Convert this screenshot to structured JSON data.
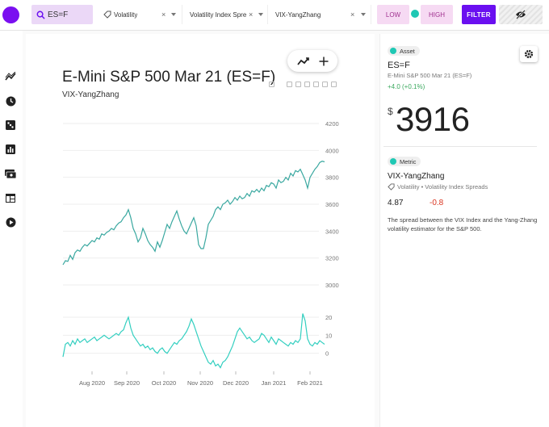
{
  "topbar": {
    "search_value": "ES=F",
    "dropdowns": [
      {
        "label": "Volatility",
        "clear": "×"
      },
      {
        "label": "Volatility Index Spre",
        "clear": "×"
      },
      {
        "label": "VIX-YangZhang",
        "clear": "×"
      }
    ],
    "low_label": "LOW",
    "high_label": "HIGH",
    "filter_label": "FILTER",
    "colors": {
      "accent": "#6a0ff0",
      "toggle": "#1fc8b4",
      "pill_bg": "#f6daf3"
    }
  },
  "sidebar": {
    "icons": [
      "trend-icon",
      "clock-icon",
      "dice-icon",
      "bar-chart-icon",
      "money-icon",
      "table-icon",
      "play-icon"
    ]
  },
  "chart": {
    "title": "E-Mini S&P 500 Mar 21 (ES=F)",
    "subtitle": "VIX-YangZhang",
    "tool_icons": [
      "line-chart-icon",
      "plus-icon"
    ]
  },
  "chart_data": {
    "type": "line",
    "x_ticks": [
      "Aug 2020",
      "Sep 2020",
      "Oct 2020",
      "Nov 2020",
      "Dec 2020",
      "Jan 2021",
      "Feb 2021"
    ],
    "panels": [
      {
        "name": "price",
        "ylim": [
          3000,
          4200
        ],
        "y_ticks": [
          "4200",
          "4000",
          "3800",
          "3600",
          "3400",
          "3200",
          "3000"
        ],
        "color": "#3aa8a0",
        "values": [
          3150,
          3180,
          3175,
          3220,
          3190,
          3240,
          3260,
          3250,
          3280,
          3300,
          3290,
          3310,
          3330,
          3320,
          3350,
          3340,
          3380,
          3370,
          3390,
          3400,
          3420,
          3410,
          3440,
          3460,
          3470,
          3500,
          3520,
          3560,
          3500,
          3420,
          3380,
          3320,
          3350,
          3420,
          3380,
          3330,
          3300,
          3280,
          3250,
          3320,
          3280,
          3330,
          3390,
          3450,
          3420,
          3470,
          3510,
          3550,
          3490,
          3440,
          3400,
          3380,
          3420,
          3460,
          3500,
          3440,
          3300,
          3270,
          3270,
          3350,
          3450,
          3480,
          3510,
          3560,
          3580,
          3560,
          3600,
          3610,
          3630,
          3600,
          3620,
          3650,
          3630,
          3660,
          3640,
          3650,
          3680,
          3660,
          3700,
          3690,
          3710,
          3690,
          3720,
          3700,
          3740,
          3730,
          3760,
          3750,
          3720,
          3780,
          3760,
          3770,
          3800,
          3780,
          3830,
          3810,
          3850,
          3840,
          3860,
          3820,
          3780,
          3720,
          3800,
          3830,
          3860,
          3880,
          3910,
          3920,
          3915
        ]
      },
      {
        "name": "vix-yangzhang",
        "ylim": [
          -10,
          20
        ],
        "y_ticks": [
          "20",
          "10",
          "0"
        ],
        "color": "#33cfc0",
        "values": [
          -2,
          5,
          6,
          4,
          7,
          5,
          8,
          6,
          7,
          8,
          6,
          7,
          8,
          9,
          7,
          8,
          9,
          10,
          9,
          8,
          9,
          10,
          11,
          10,
          12,
          13,
          17,
          20,
          14,
          10,
          8,
          6,
          4,
          5,
          3,
          4,
          2,
          3,
          1,
          0,
          2,
          3,
          1,
          0,
          2,
          4,
          6,
          5,
          7,
          8,
          10,
          12,
          15,
          19,
          16,
          12,
          8,
          4,
          1,
          -2,
          -5,
          -6,
          -4,
          -7,
          -6,
          -8,
          -5,
          -4,
          -2,
          1,
          4,
          8,
          12,
          14,
          12,
          10,
          8,
          9,
          7,
          6,
          7,
          8,
          11,
          10,
          8,
          6,
          9,
          7,
          5,
          8,
          7,
          6,
          5,
          4,
          6,
          5,
          7,
          6,
          8,
          22,
          18,
          8,
          5,
          4,
          6,
          5,
          7,
          6,
          5
        ]
      }
    ]
  },
  "panel": {
    "asset_chip": "Asset",
    "symbol": "ES=F",
    "name": "E-Mini S&P 500 Mar 21 (ES=F)",
    "change": "+4.0 (+0.1%)",
    "currency": "$",
    "price": "3916",
    "metric_chip": "Metric",
    "metric_name": "VIX-YangZhang",
    "metric_tags": "Volatility • Volatility Index Spreads",
    "metric_value": "4.87",
    "metric_change": "-0.8",
    "description": "The spread between the VIX Index and the Yang-Zhang volatility estimator for the S&P 500."
  }
}
